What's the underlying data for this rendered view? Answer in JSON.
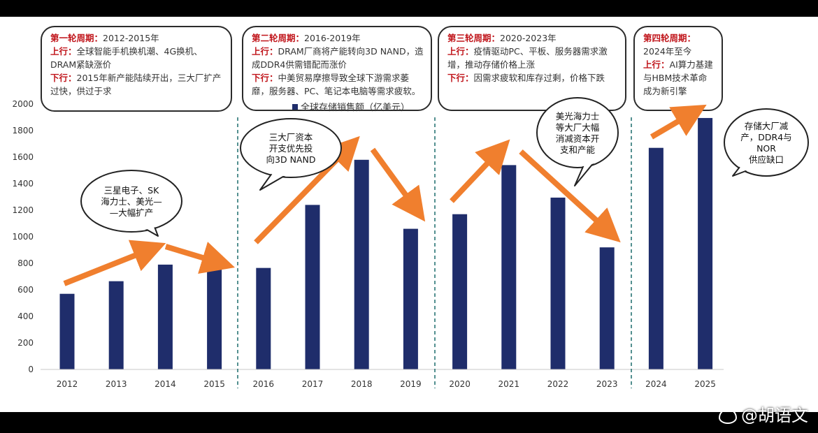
{
  "cycles": [
    {
      "title": "第一轮周期：",
      "period": "2012-2015年",
      "up_label": "上行：",
      "up_text": "全球智能手机换机潮、4G换机、DRAM紧缺涨价",
      "down_label": "下行：",
      "down_text": "2015年新产能陆续开出，三大厂扩产过快，供过于求"
    },
    {
      "title": "第二轮周期：",
      "period": "2016-2019年",
      "up_label": "上行：",
      "up_text": "DRAM厂商将产能转向3D NAND，造成DDR4供需错配而涨价",
      "down_label": "下行：",
      "down_text": "中美贸易摩擦导致全球下游需求萎靡，服务器、PC、笔记本电脑等需求疲软。"
    },
    {
      "title": "第三轮周期：",
      "period": "2020-2023年",
      "up_label": "上行：",
      "up_text": "疫情驱动PC、平板、服务器需求激增，推动存储价格上涨",
      "down_label": "下行：",
      "down_text": "因需求疲软和库存过剩，价格下跌"
    },
    {
      "title": "第四轮周期：",
      "period": "2024年至今",
      "up_label": "上行：",
      "up_text": "AI算力基建与HBM技术革命成为新引擎"
    }
  ],
  "chart_data": {
    "type": "bar",
    "legend": "全球存储销售额（亿美元）",
    "categories": [
      "2012",
      "2013",
      "2014",
      "2015",
      "2016",
      "2017",
      "2018",
      "2019",
      "2020",
      "2021",
      "2022",
      "2023",
      "2024",
      "2025"
    ],
    "values": [
      570,
      665,
      790,
      770,
      765,
      1240,
      1580,
      1060,
      1170,
      1540,
      1295,
      920,
      1670,
      1895
    ],
    "ylim": [
      0,
      2000
    ],
    "yticks": [
      0,
      200,
      400,
      600,
      800,
      1000,
      1200,
      1400,
      1600,
      1800,
      2000
    ],
    "bar_color": "#1f2d6b",
    "arrow_color": "#f07f2e",
    "callouts": [
      {
        "lines": [
          "三星电子、SK",
          "海力士、美光—",
          "—大幅扩产"
        ]
      },
      {
        "lines": [
          "三大厂资本",
          "开支优先投",
          "向3D NAND"
        ]
      },
      {
        "lines": [
          "美光海力士",
          "等大厂大幅",
          "消减资本开",
          "支和产能"
        ]
      },
      {
        "lines": [
          "存储大厂减",
          "产，DDR4与",
          "NOR",
          "供应缺口"
        ]
      }
    ]
  },
  "watermark": "@胡语文"
}
